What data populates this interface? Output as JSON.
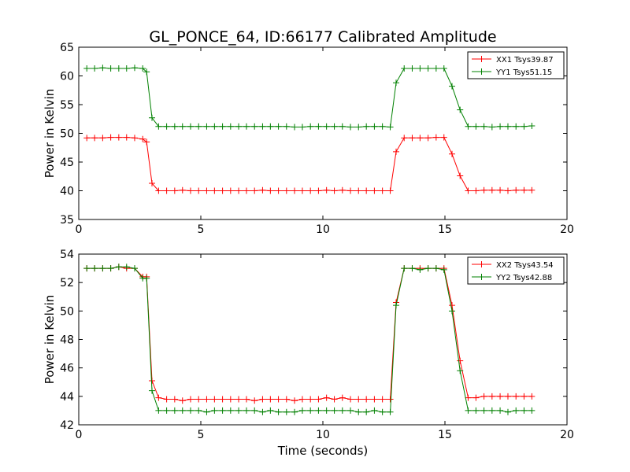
{
  "title": "GL_PONCE_64, ID:66177 Calibrated Amplitude",
  "xlabel": "Time (seconds)",
  "colors": {
    "red": "#ff0000",
    "green": "#008000"
  },
  "chart_data": [
    {
      "type": "line",
      "title": "GL_PONCE_64, ID:66177 Calibrated Amplitude",
      "xlabel": "",
      "ylabel": "Power in Kelvin",
      "xlim": [
        0,
        20
      ],
      "ylim": [
        35,
        65
      ],
      "xticks": [
        "0",
        "5",
        "10",
        "15",
        "20"
      ],
      "yticks": [
        "35",
        "40",
        "45",
        "50",
        "55",
        "60",
        "65"
      ],
      "grid": false,
      "legend_position": "top-right",
      "x": [
        0.33,
        0.65,
        0.98,
        1.31,
        1.64,
        1.96,
        2.29,
        2.62,
        2.78,
        3.0,
        3.27,
        3.6,
        3.93,
        4.25,
        4.58,
        4.91,
        5.24,
        5.56,
        5.89,
        6.22,
        6.55,
        6.87,
        7.2,
        7.53,
        7.85,
        8.18,
        8.51,
        8.84,
        9.16,
        9.49,
        9.82,
        10.15,
        10.47,
        10.8,
        11.13,
        11.46,
        11.78,
        12.11,
        12.44,
        12.76,
        13.0,
        13.33,
        13.66,
        13.98,
        14.31,
        14.64,
        14.96,
        15.29,
        15.62,
        15.95,
        16.27,
        16.6,
        16.93,
        17.26,
        17.58,
        17.91,
        18.24,
        18.56
      ],
      "series": [
        {
          "name": "XX1 Tsys39.87",
          "color": "#ff0000",
          "values": [
            49.2,
            49.2,
            49.2,
            49.3,
            49.3,
            49.3,
            49.2,
            49.0,
            48.5,
            41.3,
            40.0,
            40.0,
            40.0,
            40.1,
            40.0,
            40.0,
            40.0,
            40.0,
            40.0,
            40.0,
            40.0,
            40.0,
            40.0,
            40.1,
            40.0,
            40.0,
            40.0,
            40.0,
            40.0,
            40.0,
            40.0,
            40.1,
            40.0,
            40.1,
            40.0,
            40.0,
            40.0,
            40.0,
            40.0,
            40.0,
            46.8,
            49.2,
            49.2,
            49.2,
            49.2,
            49.3,
            49.3,
            46.4,
            42.6,
            40.0,
            40.0,
            40.1,
            40.1,
            40.1,
            40.0,
            40.1,
            40.1,
            40.1
          ]
        },
        {
          "name": "YY1 Tsys51.15",
          "color": "#008000",
          "values": [
            61.3,
            61.3,
            61.4,
            61.3,
            61.3,
            61.3,
            61.4,
            61.3,
            60.7,
            52.7,
            51.2,
            51.2,
            51.2,
            51.2,
            51.2,
            51.2,
            51.2,
            51.2,
            51.2,
            51.2,
            51.2,
            51.2,
            51.2,
            51.2,
            51.2,
            51.2,
            51.2,
            51.1,
            51.1,
            51.2,
            51.2,
            51.2,
            51.2,
            51.2,
            51.1,
            51.1,
            51.2,
            51.2,
            51.2,
            51.1,
            58.8,
            61.3,
            61.3,
            61.3,
            61.3,
            61.3,
            61.3,
            58.2,
            54.1,
            51.2,
            51.2,
            51.2,
            51.1,
            51.2,
            51.2,
            51.2,
            51.2,
            51.3
          ]
        }
      ]
    },
    {
      "type": "line",
      "title": "",
      "xlabel": "Time (seconds)",
      "ylabel": "Power in Kelvin",
      "xlim": [
        0,
        20
      ],
      "ylim": [
        42,
        54
      ],
      "xticks": [
        "0",
        "5",
        "10",
        "15",
        "20"
      ],
      "yticks": [
        "42",
        "44",
        "46",
        "48",
        "50",
        "52",
        "54"
      ],
      "grid": false,
      "legend_position": "top-right",
      "x": [
        0.33,
        0.65,
        0.98,
        1.31,
        1.64,
        1.96,
        2.29,
        2.62,
        2.78,
        3.0,
        3.27,
        3.6,
        3.93,
        4.25,
        4.58,
        4.91,
        5.24,
        5.56,
        5.89,
        6.22,
        6.55,
        6.87,
        7.2,
        7.53,
        7.85,
        8.18,
        8.51,
        8.84,
        9.16,
        9.49,
        9.82,
        10.15,
        10.47,
        10.8,
        11.13,
        11.46,
        11.78,
        12.11,
        12.44,
        12.76,
        13.0,
        13.33,
        13.66,
        13.98,
        14.31,
        14.64,
        14.96,
        15.29,
        15.62,
        15.95,
        16.27,
        16.6,
        16.93,
        17.26,
        17.58,
        17.91,
        18.24,
        18.56
      ],
      "series": [
        {
          "name": "XX2 Tsys43.54",
          "color": "#ff0000",
          "values": [
            53.0,
            53.0,
            53.0,
            53.0,
            53.1,
            53.0,
            53.0,
            52.4,
            52.4,
            45.1,
            43.9,
            43.8,
            43.8,
            43.7,
            43.8,
            43.8,
            43.8,
            43.8,
            43.8,
            43.8,
            43.8,
            43.8,
            43.7,
            43.8,
            43.8,
            43.8,
            43.8,
            43.7,
            43.8,
            43.8,
            43.8,
            43.9,
            43.8,
            43.9,
            43.8,
            43.8,
            43.8,
            43.8,
            43.8,
            43.8,
            50.6,
            53.0,
            53.0,
            53.0,
            53.0,
            53.0,
            53.0,
            50.4,
            46.5,
            43.9,
            43.9,
            44.0,
            44.0,
            44.0,
            44.0,
            44.0,
            44.0,
            44.0
          ]
        },
        {
          "name": "YY2 Tsys42.88",
          "color": "#008000",
          "values": [
            53.0,
            53.0,
            53.0,
            53.0,
            53.1,
            53.1,
            53.0,
            52.3,
            52.3,
            44.4,
            43.0,
            43.0,
            43.0,
            43.0,
            43.0,
            43.0,
            42.9,
            43.0,
            43.0,
            43.0,
            43.0,
            43.0,
            43.0,
            42.9,
            43.0,
            42.9,
            42.9,
            42.9,
            43.0,
            43.0,
            43.0,
            43.0,
            43.0,
            43.0,
            43.0,
            42.9,
            42.9,
            43.0,
            42.9,
            42.9,
            50.4,
            53.0,
            53.0,
            52.9,
            53.0,
            53.0,
            52.9,
            50.0,
            45.8,
            43.0,
            43.0,
            43.0,
            43.0,
            43.0,
            42.9,
            43.0,
            43.0,
            43.0
          ]
        }
      ]
    }
  ]
}
